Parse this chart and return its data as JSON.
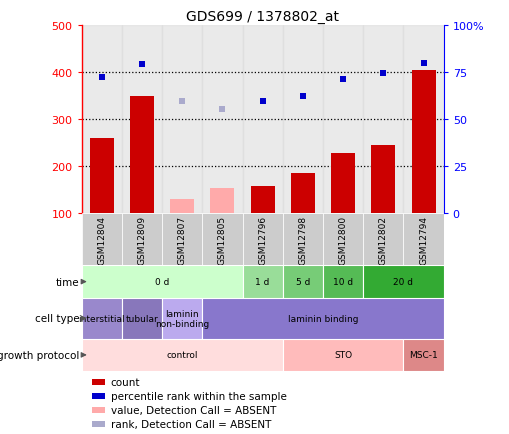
{
  "title": "GDS699 / 1378802_at",
  "samples": [
    "GSM12804",
    "GSM12809",
    "GSM12807",
    "GSM12805",
    "GSM12796",
    "GSM12798",
    "GSM12800",
    "GSM12802",
    "GSM12794"
  ],
  "counts": [
    260,
    348,
    null,
    null,
    158,
    185,
    228,
    245,
    405
  ],
  "counts_absent": [
    null,
    null,
    130,
    152,
    null,
    null,
    null,
    null,
    null
  ],
  "pct_ranks": [
    390,
    418,
    null,
    null,
    338,
    348,
    385,
    398,
    420
  ],
  "pct_ranks_absent": [
    null,
    null,
    338,
    322,
    null,
    null,
    null,
    null,
    null
  ],
  "ylim_left": [
    100,
    500
  ],
  "yticks_left": [
    100,
    200,
    300,
    400,
    500
  ],
  "ytick_labels_left": [
    "100",
    "200",
    "300",
    "400",
    "500"
  ],
  "ytick_pct": [
    0,
    25,
    50,
    75,
    100
  ],
  "ytick_labels_right": [
    "0",
    "25",
    "50",
    "75",
    "100%"
  ],
  "hlines": [
    200,
    300,
    400
  ],
  "bar_color": "#cc0000",
  "bar_absent_color": "#ffaaaa",
  "dot_color": "#0000cc",
  "dot_absent_color": "#aaaacc",
  "time_groups": [
    {
      "label": "0 d",
      "start": 0,
      "end": 4,
      "color": "#ccffcc"
    },
    {
      "label": "1 d",
      "start": 4,
      "end": 5,
      "color": "#99dd99"
    },
    {
      "label": "5 d",
      "start": 5,
      "end": 6,
      "color": "#77cc77"
    },
    {
      "label": "10 d",
      "start": 6,
      "end": 7,
      "color": "#55bb55"
    },
    {
      "label": "20 d",
      "start": 7,
      "end": 9,
      "color": "#33aa33"
    }
  ],
  "cell_type_groups": [
    {
      "label": "interstitial",
      "start": 0,
      "end": 1,
      "color": "#9988cc"
    },
    {
      "label": "tubular",
      "start": 1,
      "end": 2,
      "color": "#8877bb"
    },
    {
      "label": "laminin\nnon-binding",
      "start": 2,
      "end": 3,
      "color": "#bbaaee"
    },
    {
      "label": "laminin binding",
      "start": 3,
      "end": 9,
      "color": "#8877cc"
    }
  ],
  "growth_groups": [
    {
      "label": "control",
      "start": 0,
      "end": 5,
      "color": "#ffdddd"
    },
    {
      "label": "STO",
      "start": 5,
      "end": 8,
      "color": "#ffbbbb"
    },
    {
      "label": "MSC-1",
      "start": 8,
      "end": 9,
      "color": "#dd8888"
    }
  ],
  "legend_items": [
    {
      "color": "#cc0000",
      "label": "count",
      "square": true
    },
    {
      "color": "#0000cc",
      "label": "percentile rank within the sample",
      "square": true
    },
    {
      "color": "#ffaaaa",
      "label": "value, Detection Call = ABSENT",
      "square": true
    },
    {
      "color": "#aaaacc",
      "label": "rank, Detection Call = ABSENT",
      "square": true
    }
  ],
  "sample_bg_color": "#cccccc",
  "chart_bg_color": "#ffffff"
}
